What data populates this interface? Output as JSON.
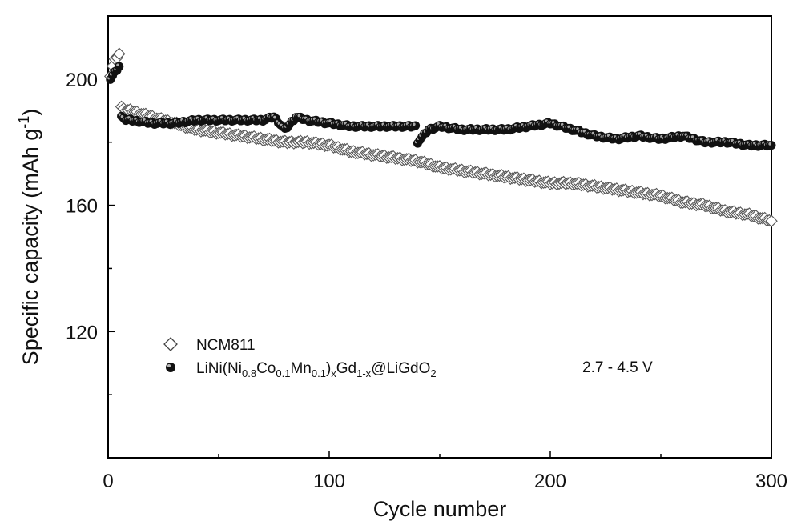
{
  "chart_data": {
    "type": "scatter",
    "title": "",
    "xlabel": "Cycle number",
    "ylabel_main": "Specific capacity (mAh g",
    "ylabel_sup": "-1",
    "ylabel_close": ")",
    "xlim": [
      0,
      300
    ],
    "ylim": [
      80,
      220
    ],
    "xticks": [
      0,
      100,
      200,
      300
    ],
    "yticks": [
      120,
      160,
      200
    ],
    "x_minor_step": 50,
    "y_minor_step": 20,
    "grid": false,
    "legend_position": "lower-left",
    "annotation": "2.7 - 4.5 V",
    "series": [
      {
        "name": "NCM811",
        "marker": "open-diamond",
        "color": "#555555",
        "points": [
          [
            1,
            201
          ],
          [
            2,
            204
          ],
          [
            3,
            206
          ],
          [
            4,
            207
          ],
          [
            5,
            208
          ],
          [
            6,
            191
          ],
          [
            7,
            191
          ],
          [
            8,
            190
          ],
          [
            9,
            190
          ],
          [
            10,
            190
          ],
          [
            20,
            188
          ],
          [
            30,
            186
          ],
          [
            40,
            184
          ],
          [
            50,
            183
          ],
          [
            60,
            182
          ],
          [
            70,
            181
          ],
          [
            80,
            180
          ],
          [
            90,
            180
          ],
          [
            100,
            179
          ],
          [
            110,
            177
          ],
          [
            120,
            176
          ],
          [
            130,
            175
          ],
          [
            140,
            174
          ],
          [
            150,
            172
          ],
          [
            160,
            171
          ],
          [
            170,
            170
          ],
          [
            180,
            169
          ],
          [
            190,
            168
          ],
          [
            200,
            167
          ],
          [
            210,
            167
          ],
          [
            220,
            166
          ],
          [
            230,
            165
          ],
          [
            240,
            164
          ],
          [
            250,
            163
          ],
          [
            260,
            161
          ],
          [
            270,
            160
          ],
          [
            280,
            158
          ],
          [
            290,
            157
          ],
          [
            300,
            155
          ]
        ]
      },
      {
        "name_parts": [
          {
            "t": "LiNi(Ni",
            "s": "n"
          },
          {
            "t": "0.8",
            "s": "sub"
          },
          {
            "t": "Co",
            "s": "n"
          },
          {
            "t": "0.1",
            "s": "sub"
          },
          {
            "t": "Mn",
            "s": "n"
          },
          {
            "t": "0.1",
            "s": "sub"
          },
          {
            "t": ")",
            "s": "n"
          },
          {
            "t": "x",
            "s": "sub"
          },
          {
            "t": "Gd",
            "s": "n"
          },
          {
            "t": "1-x",
            "s": "sub"
          },
          {
            "t": "@LiGdO",
            "s": "n"
          },
          {
            "t": "2",
            "s": "sub"
          }
        ],
        "marker": "filled-sphere",
        "color": "#111111",
        "points": [
          [
            1,
            200
          ],
          [
            2,
            201
          ],
          [
            3,
            202
          ],
          [
            4,
            203
          ],
          [
            5,
            204
          ],
          [
            6,
            188
          ],
          [
            7,
            188
          ],
          [
            8,
            187
          ],
          [
            9,
            187
          ],
          [
            10,
            187
          ],
          [
            20,
            186
          ],
          [
            30,
            186
          ],
          [
            40,
            187
          ],
          [
            50,
            187
          ],
          [
            60,
            187
          ],
          [
            70,
            187
          ],
          [
            75,
            188
          ],
          [
            80,
            184
          ],
          [
            85,
            188
          ],
          [
            90,
            187
          ],
          [
            100,
            186
          ],
          [
            110,
            185
          ],
          [
            120,
            185
          ],
          [
            130,
            185
          ],
          [
            139,
            185
          ],
          [
            140,
            180
          ],
          [
            145,
            184
          ],
          [
            150,
            185
          ],
          [
            160,
            184
          ],
          [
            170,
            184
          ],
          [
            180,
            184
          ],
          [
            190,
            185
          ],
          [
            200,
            186
          ],
          [
            210,
            184
          ],
          [
            220,
            182
          ],
          [
            230,
            181
          ],
          [
            240,
            182
          ],
          [
            250,
            181
          ],
          [
            260,
            182
          ],
          [
            270,
            180
          ],
          [
            280,
            180
          ],
          [
            290,
            179
          ],
          [
            300,
            179
          ]
        ]
      }
    ]
  }
}
